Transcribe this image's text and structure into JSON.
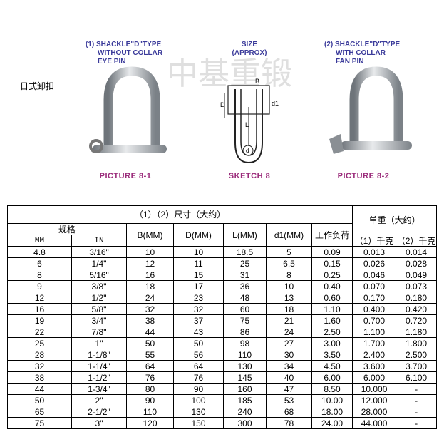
{
  "label": "日式卸扣",
  "watermark": "中基重锻",
  "pictures": [
    {
      "caption_lines": [
        "(1) SHACKLE\"D\"TYPE",
        "WITHOUT COLLAR",
        "EYE PIN"
      ],
      "title": "PICTURE 8-1"
    },
    {
      "caption_lines": [
        "(2) SHACKLE\"D\"TYPE",
        "WITH COLLAR",
        "FAN PIN"
      ],
      "title": "PICTURE 8-2"
    }
  ],
  "sketch": {
    "caption_lines": [
      "SIZE",
      "(APPROX)"
    ],
    "title": "SKETCH 8",
    "labels": [
      "B",
      "D",
      "d1",
      "L",
      "d"
    ]
  },
  "table": {
    "headers": {
      "dims": "（1）（2）尺寸（大约）",
      "weight": "单重（大约）",
      "spec": "规格",
      "mm": "MM",
      "in": "IN",
      "b": "B(MM)",
      "d": "D(MM)",
      "l": "L(MM)",
      "d1": "d1(MM)",
      "load": "工作负荷",
      "w1": "（1）千克",
      "w2": "（2）千克"
    },
    "rows": [
      [
        "4.8",
        "3/16\"",
        "10",
        "10",
        "18.5",
        "5",
        "0.09",
        "0.013",
        "0.014"
      ],
      [
        "6",
        "1/4\"",
        "12",
        "11",
        "25",
        "6.5",
        "0.15",
        "0.026",
        "0.028"
      ],
      [
        "8",
        "5/16\"",
        "16",
        "15",
        "31",
        "8",
        "0.25",
        "0.046",
        "0.049"
      ],
      [
        "9",
        "3/8\"",
        "18",
        "17",
        "36",
        "10",
        "0.40",
        "0.070",
        "0.073"
      ],
      [
        "12",
        "1/2\"",
        "24",
        "23",
        "48",
        "13",
        "0.60",
        "0.170",
        "0.180"
      ],
      [
        "16",
        "5/8\"",
        "32",
        "32",
        "60",
        "18",
        "1.10",
        "0.400",
        "0.420"
      ],
      [
        "19",
        "3/4\"",
        "38",
        "37",
        "75",
        "21",
        "1.60",
        "0.700",
        "0.720"
      ],
      [
        "22",
        "7/8\"",
        "44",
        "43",
        "86",
        "24",
        "2.50",
        "1.100",
        "1.180"
      ],
      [
        "25",
        "1\"",
        "50",
        "50",
        "98",
        "27",
        "3.00",
        "1.700",
        "1.800"
      ],
      [
        "28",
        "1-1/8\"",
        "55",
        "56",
        "110",
        "30",
        "3.50",
        "2.400",
        "2.500"
      ],
      [
        "32",
        "1-1/4\"",
        "64",
        "64",
        "130",
        "34",
        "4.50",
        "3.600",
        "3.700"
      ],
      [
        "38",
        "1-1/2\"",
        "76",
        "76",
        "145",
        "40",
        "6.00",
        "6.000",
        "6.100"
      ],
      [
        "44",
        "1-3/4\"",
        "80",
        "90",
        "160",
        "47",
        "8.50",
        "10.000",
        "-"
      ],
      [
        "50",
        "2\"",
        "90",
        "100",
        "185",
        "53",
        "10.00",
        "12.000",
        "-"
      ],
      [
        "65",
        "2-1/2\"",
        "110",
        "130",
        "240",
        "68",
        "18.00",
        "28.000",
        "-"
      ],
      [
        "75",
        "3\"",
        "120",
        "150",
        "300",
        "78",
        "24.00",
        "44.000",
        "-"
      ]
    ]
  }
}
